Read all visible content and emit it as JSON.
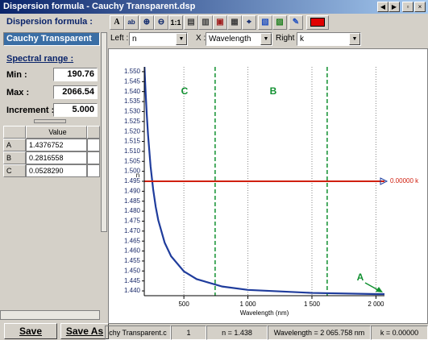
{
  "window": {
    "title": "Dispersion formula - Cauchy Transparent.dsp"
  },
  "left_panel": {
    "formula_label": "Dispersion formula :",
    "formula": "Cauchy Transparent",
    "range_label": "Spectral range :",
    "min_label": "Min :",
    "min": "190.76",
    "max_label": "Max :",
    "max": "2066.54",
    "increment_label": "Increment :",
    "increment": "5.000",
    "table": {
      "header": "Value",
      "rows": [
        [
          "A",
          "1.4376752"
        ],
        [
          "B",
          "0.2816558"
        ],
        [
          "C",
          "0.0528290"
        ]
      ]
    },
    "buttons": [
      "Save",
      "Save As"
    ]
  },
  "toolbar": {
    "icon_texts": [
      "A",
      "1:1"
    ],
    "left_label": "Left :",
    "left": "n",
    "x_label": "X :",
    "x": "Wavelength",
    "right_label": "Right :",
    "right": "k"
  },
  "chart_data": {
    "type": "line",
    "x_label": "Wavelength (nm)",
    "xlim": [
      190.76,
      2066.54
    ],
    "xticks": [
      500,
      {
        "value": 1000,
        "label": "1 000"
      },
      {
        "value": 1500,
        "label": "1 500"
      },
      {
        "value": 2000,
        "label": "2 000"
      }
    ],
    "ylim": [
      1.4376,
      1.5524
    ],
    "yticks": [
      {
        "value": 1.44,
        "label": "1.440"
      },
      1.445,
      {
        "value": 1.45,
        "label": "1.450"
      },
      1.455,
      {
        "value": 1.46,
        "label": "1.460"
      },
      1.465,
      {
        "value": 1.47,
        "label": "1.470"
      },
      1.475,
      {
        "value": 1.48,
        "label": "1.480"
      },
      1.485,
      {
        "value": 1.49,
        "label": "1.490"
      },
      1.495,
      {
        "value": 1.5,
        "label": "1.500"
      },
      1.505,
      {
        "value": 1.51,
        "label": "1.510"
      },
      1.515,
      {
        "value": 1.52,
        "label": "1.520"
      },
      1.525,
      {
        "value": 1.53,
        "label": "1.530"
      },
      1.535,
      {
        "value": 1.54,
        "label": "1.540"
      },
      1.545,
      {
        "value": 1.55,
        "label": "1.550"
      }
    ],
    "y2lim": [
      -1,
      1
    ],
    "grid": true,
    "x": [
      190.76,
      195,
      200,
      210,
      220,
      240,
      260,
      280,
      300,
      350,
      400,
      500,
      600,
      800,
      1000,
      1500,
      2000,
      2066.54
    ],
    "series": [
      {
        "name": "n",
        "color": "#1f3c9c",
        "values": [
          1.555,
          1.5483,
          1.5411,
          1.5287,
          1.5184,
          1.5025,
          1.491,
          1.4822,
          1.4755,
          1.4642,
          1.4574,
          1.4498,
          1.4459,
          1.4422,
          1.4405,
          1.439,
          1.4384,
          1.4384
        ]
      },
      {
        "color": "#d02010",
        "axis": "y2",
        "end_label": "0.00000 k",
        "values": [
          0,
          0,
          0,
          0,
          0,
          0,
          0,
          0,
          0,
          0,
          0,
          0,
          0,
          0,
          0,
          0,
          0,
          0
        ]
      }
    ],
    "region_lines": {
      "color": "#109030",
      "values": [
        744,
        1619
      ]
    },
    "annotations": [
      "C",
      "B",
      "A"
    ]
  },
  "status_bar": [
    "chy Transparent.c",
    "1",
    "n = 1.438",
    "Wavelength = 2 065.758 nm",
    "k = 0.00000"
  ]
}
